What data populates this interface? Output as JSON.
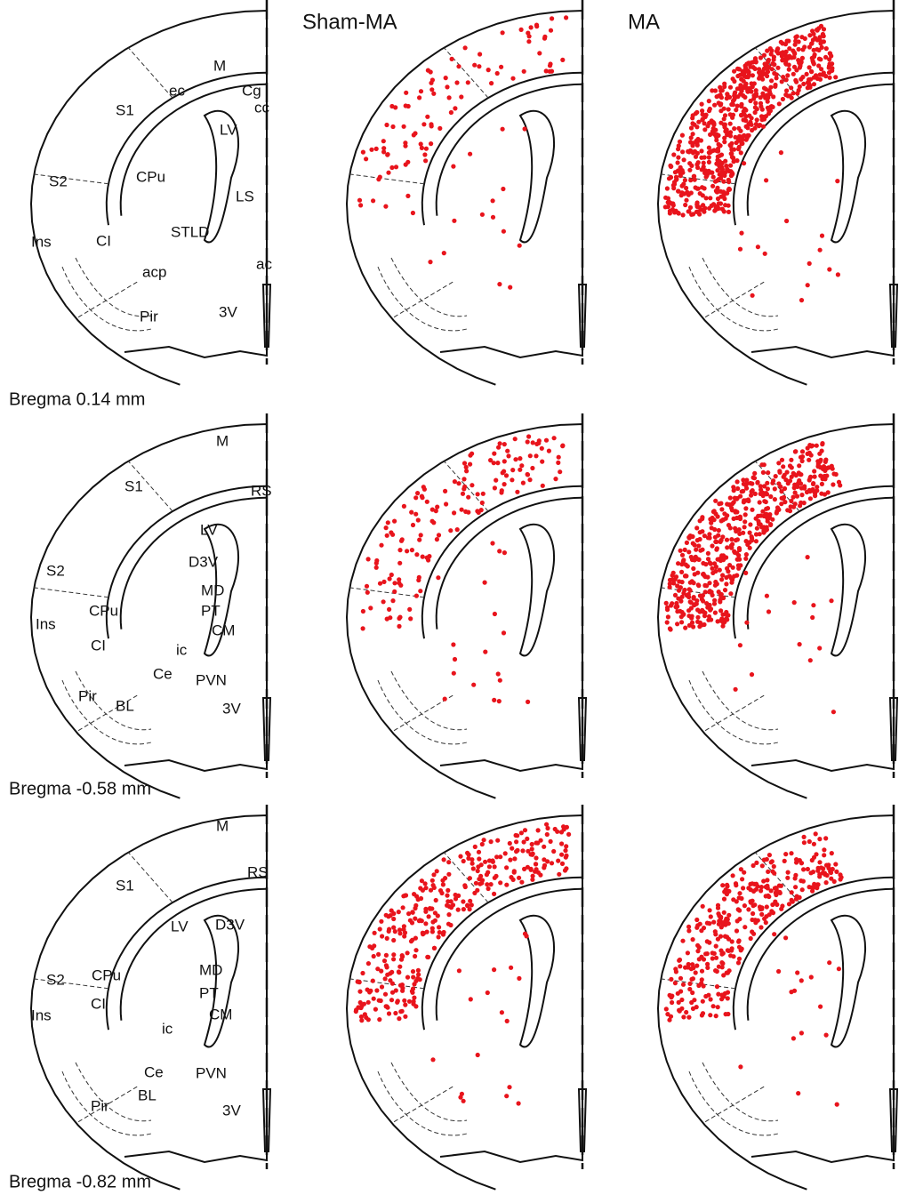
{
  "columns": [
    "Sham-MA",
    "MA"
  ],
  "sections": [
    {
      "bregma": "Bregma 0.14 mm",
      "labels": [
        "S1",
        "M",
        "ec",
        "Cg",
        "cc",
        "LV",
        "S2",
        "CPu",
        "LS",
        "STLD",
        "Ins",
        "CI",
        "ac",
        "acp",
        "Pir",
        "3V"
      ]
    },
    {
      "bregma": "Bregma -0.58 mm",
      "labels": [
        "S1",
        "M",
        "RS",
        "LV",
        "S2",
        "D3V",
        "MD",
        "PT",
        "CPu",
        "Ins",
        "CI",
        "ic",
        "CM",
        "Ce",
        "PVN",
        "Pir",
        "BL",
        "3V"
      ]
    },
    {
      "bregma": "Bregma -0.82 mm",
      "labels": [
        "M",
        "S1",
        "RS",
        "LV",
        "D3V",
        "S2",
        "MD",
        "PT",
        "CPu",
        "Ins",
        "CI",
        "ic",
        "CM",
        "PVN",
        "Ce",
        "Pir",
        "BL",
        "3V"
      ]
    }
  ]
}
